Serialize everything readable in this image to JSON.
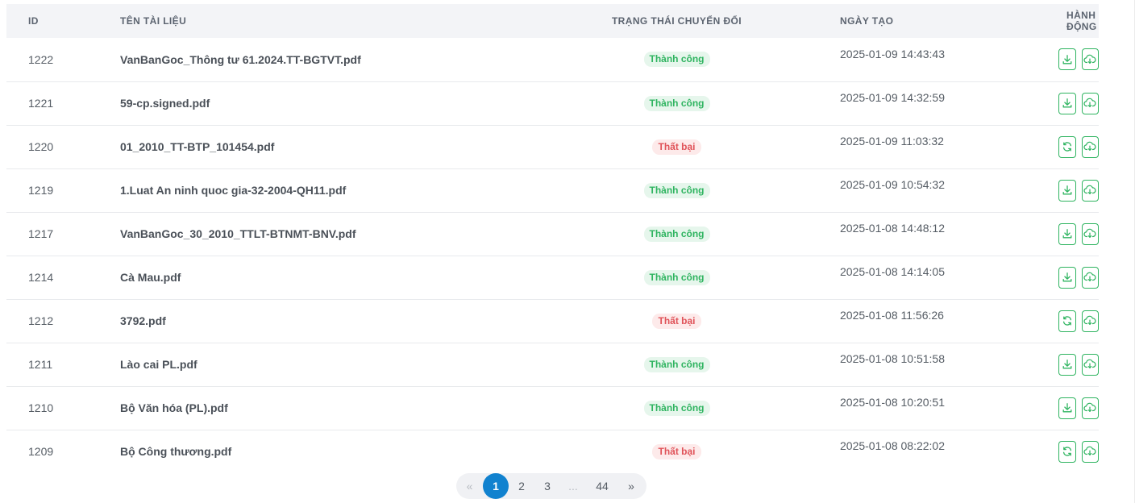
{
  "table": {
    "headers": {
      "id": "ID",
      "name": "TÊN TÀI LIỆU",
      "status": "TRẠNG THÁI CHUYỂN ĐỔI",
      "date": "NGÀY TẠO",
      "action": "HÀNH ĐỘNG"
    },
    "rows": [
      {
        "id": "1222",
        "name": "VanBanGoc_Thông tư 61.2024.TT-BGTVT.pdf",
        "status": "Thành công",
        "status_type": "success",
        "date": "2025-01-09 14:43:43",
        "primary_action": "download-icon"
      },
      {
        "id": "1221",
        "name": "59-cp.signed.pdf",
        "status": "Thành công",
        "status_type": "success",
        "date": "2025-01-09 14:32:59",
        "primary_action": "download-icon"
      },
      {
        "id": "1220",
        "name": "01_2010_TT-BTP_101454.pdf",
        "status": "Thất bại",
        "status_type": "fail",
        "date": "2025-01-09 11:03:32",
        "primary_action": "retry-icon"
      },
      {
        "id": "1219",
        "name": "1.Luat An ninh quoc gia-32-2004-QH11.pdf",
        "status": "Thành công",
        "status_type": "success",
        "date": "2025-01-09 10:54:32",
        "primary_action": "download-icon"
      },
      {
        "id": "1217",
        "name": "VanBanGoc_30_2010_TTLT-BTNMT-BNV.pdf",
        "status": "Thành công",
        "status_type": "success",
        "date": "2025-01-08 14:48:12",
        "primary_action": "download-icon"
      },
      {
        "id": "1214",
        "name": "Cà Mau.pdf",
        "status": "Thành công",
        "status_type": "success",
        "date": "2025-01-08 14:14:05",
        "primary_action": "download-icon"
      },
      {
        "id": "1212",
        "name": "3792.pdf",
        "status": "Thất bại",
        "status_type": "fail",
        "date": "2025-01-08 11:56:26",
        "primary_action": "retry-icon"
      },
      {
        "id": "1211",
        "name": "Lào cai PL.pdf",
        "status": "Thành công",
        "status_type": "success",
        "date": "2025-01-08 10:51:58",
        "primary_action": "download-icon"
      },
      {
        "id": "1210",
        "name": "Bộ Văn hóa (PL).pdf",
        "status": "Thành công",
        "status_type": "success",
        "date": "2025-01-08 10:20:51",
        "primary_action": "download-icon"
      },
      {
        "id": "1209",
        "name": "Bộ Công thương.pdf",
        "status": "Thất bại",
        "status_type": "fail",
        "date": "2025-01-08 08:22:02",
        "primary_action": "retry-icon"
      }
    ],
    "secondary_action": "cloud-download-icon"
  },
  "pagination": {
    "prev": "«",
    "pages": [
      "1",
      "2",
      "3"
    ],
    "ellipsis": "...",
    "last": "44",
    "next": "»",
    "current": "1"
  },
  "colors": {
    "success": "#2fb460",
    "fail": "#e0545a",
    "active_page": "#1182cf"
  }
}
